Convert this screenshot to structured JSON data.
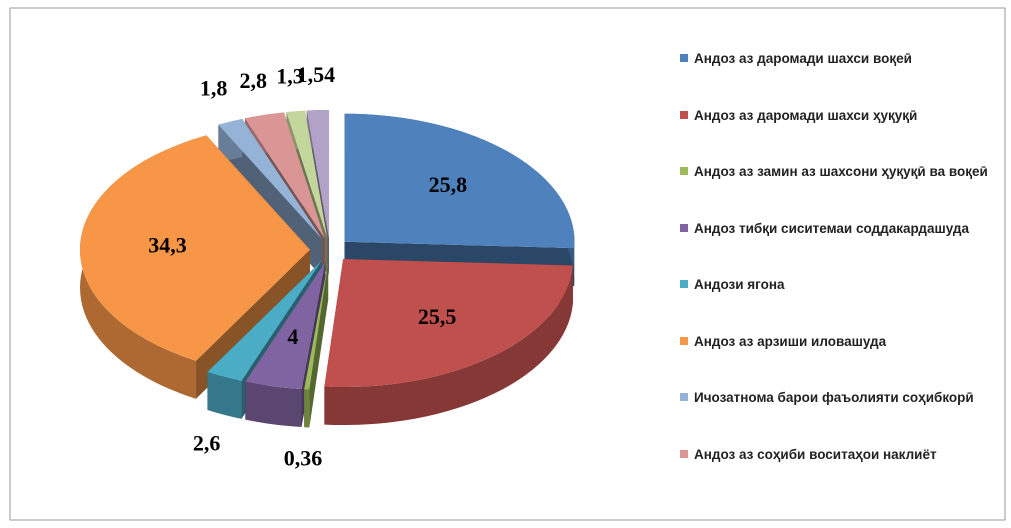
{
  "chart_data": {
    "type": "pie",
    "categories": [
      "Андоз аз даромади шахси воқеӣ",
      "Андоз аз даромади шахси ҳуқуқӣ",
      "Андоз аз замин аз шахсони ҳуқуқӣ ва воқеӣ",
      "Андоз тибқи сиситемаи соддакардашуда",
      "Андози ягона",
      "Андоз аз арзиши иловашуда",
      "Ичозатнома барои фаъолияти соҳибкорӣ",
      "Андоз аз соҳиби воситаҳои наклиёт",
      null,
      null
    ],
    "values": [
      25.8,
      25.5,
      0.36,
      4,
      2.6,
      34.3,
      1.8,
      2.8,
      1.3,
      1.54
    ],
    "value_labels": [
      "25,8",
      "25,5",
      "0,36",
      "4",
      "2,6",
      "34,3",
      "1,8",
      "2,8",
      "1,3",
      "1,54"
    ],
    "colors": [
      "#4f81bd",
      "#c0504d",
      "#9bbb59",
      "#8064a2",
      "#4bacc6",
      "#f79646",
      "#95b3d7",
      "#d99694",
      "#c3d69b",
      "#b2a2c7"
    ],
    "legend": "right"
  }
}
